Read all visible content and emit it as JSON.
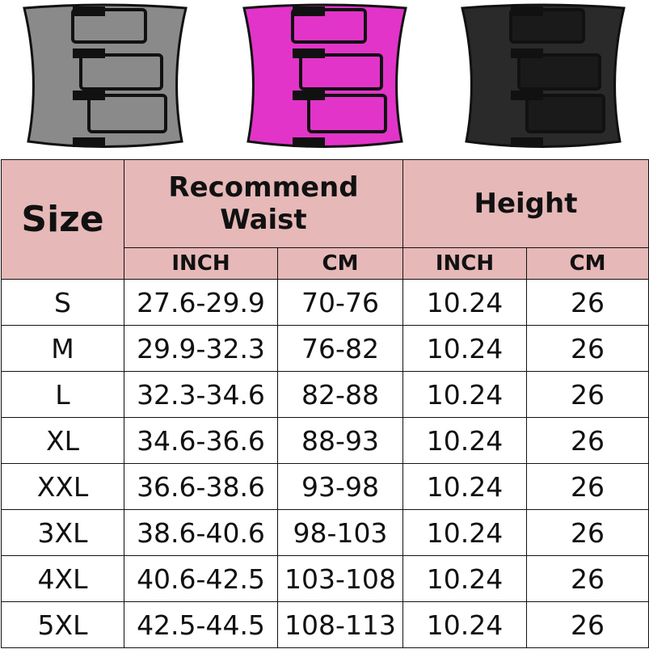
{
  "products": [
    {
      "name": "waist-trainer-gray",
      "color": "#8a8a8a"
    },
    {
      "name": "waist-trainer-pink",
      "color": "#e234c8"
    },
    {
      "name": "waist-trainer-black",
      "color": "#2a2a2a"
    }
  ],
  "header_color": "#e6b8b7",
  "table": {
    "size_header": "Size",
    "waist_header": "Recommend Waist",
    "height_header": "Height",
    "subheaders": [
      "INCH",
      "CM",
      "INCH",
      "CM"
    ],
    "rows": [
      [
        "S",
        "27.6-29.9",
        "70-76",
        "10.24",
        "26"
      ],
      [
        "M",
        "29.9-32.3",
        "76-82",
        "10.24",
        "26"
      ],
      [
        "L",
        "32.3-34.6",
        "82-88",
        "10.24",
        "26"
      ],
      [
        "XL",
        "34.6-36.6",
        "88-93",
        "10.24",
        "26"
      ],
      [
        "XXL",
        "36.6-38.6",
        "93-98",
        "10.24",
        "26"
      ],
      [
        "3XL",
        "38.6-40.6",
        "98-103",
        "10.24",
        "26"
      ],
      [
        "4XL",
        "40.6-42.5",
        "103-108",
        "10.24",
        "26"
      ],
      [
        "5XL",
        "42.5-44.5",
        "108-113",
        "10.24",
        "26"
      ]
    ]
  }
}
